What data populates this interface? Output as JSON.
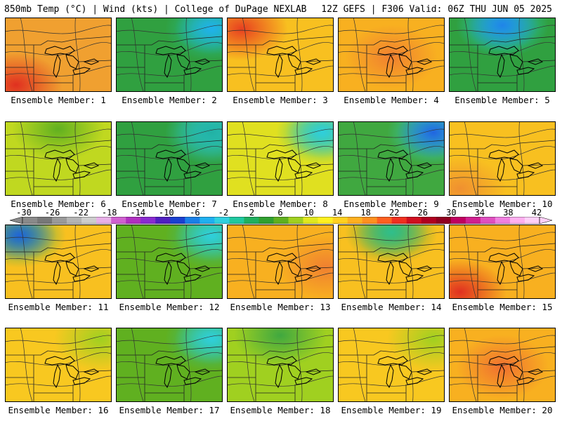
{
  "header": {
    "title_left": "850mb Temp (°C) | Wind (kts) | College of DuPage NEXLAB",
    "title_right": "12Z GEFS | F306 Valid: 06Z THU JUN 05 2025"
  },
  "colorbar": {
    "ticks": [
      "-30",
      "-26",
      "-22",
      "-18",
      "-14",
      "-10",
      "-6",
      "-2",
      "2",
      "6",
      "10",
      "14",
      "18",
      "22",
      "26",
      "30",
      "34",
      "38",
      "42"
    ],
    "colors": [
      "#8a8a8a",
      "#787878",
      "#9a9a9a",
      "#b4b4b4",
      "#cdcdcd",
      "#e8b0e8",
      "#d060d0",
      "#b030c0",
      "#8a2bd0",
      "#5020c0",
      "#1a40d0",
      "#1a80e8",
      "#20b0f0",
      "#30d0e0",
      "#20c8a0",
      "#20b060",
      "#30a030",
      "#60b020",
      "#a0d020",
      "#e0e820",
      "#fff020",
      "#ffd020",
      "#ffb020",
      "#ff9020",
      "#ff6020",
      "#f03020",
      "#d01020",
      "#b00020",
      "#900020",
      "#c00060",
      "#d02090",
      "#e050c0",
      "#f080e0",
      "#ffb0f0",
      "#ffd0f8"
    ]
  },
  "panels": [
    {
      "label": "Ensemble Member: 1",
      "base": "#f0a030",
      "accent": "#e03020",
      "accent_pos": "sw",
      "cool": ""
    },
    {
      "label": "Ensemble Member: 2",
      "base": "#30a040",
      "accent": "#20c0a0",
      "accent_pos": "ne",
      "cool": "#20b0f0"
    },
    {
      "label": "Ensemble Member: 3",
      "base": "#f8c020",
      "accent": "#e84020",
      "accent_pos": "nw",
      "cool": ""
    },
    {
      "label": "Ensemble Member: 4",
      "base": "#f8b020",
      "accent": "#f08030",
      "accent_pos": "c",
      "cool": ""
    },
    {
      "label": "Ensemble Member: 5",
      "base": "#30a040",
      "accent": "#20d0e0",
      "accent_pos": "n",
      "cool": "#2080e8"
    },
    {
      "label": "Ensemble Member: 6",
      "base": "#c0d820",
      "accent": "#60b020",
      "accent_pos": "n",
      "cool": ""
    },
    {
      "label": "Ensemble Member: 7",
      "base": "#30a040",
      "accent": "#30d0e0",
      "accent_pos": "ne",
      "cool": "#20b0a0"
    },
    {
      "label": "Ensemble Member: 8",
      "base": "#e0e020",
      "accent": "#30c090",
      "accent_pos": "ne",
      "cool": "#30d0e0"
    },
    {
      "label": "Ensemble Member: 9",
      "base": "#40a840",
      "accent": "#30d0e0",
      "accent_pos": "ne",
      "cool": "#2060e0"
    },
    {
      "label": "Ensemble Member: 10",
      "base": "#f8c020",
      "accent": "#f09030",
      "accent_pos": "sw",
      "cool": ""
    },
    {
      "label": "Ensemble Member: 11",
      "base": "#f8c020",
      "accent": "#30b060",
      "accent_pos": "nw",
      "cool": "#2060e0"
    },
    {
      "label": "Ensemble Member: 12",
      "base": "#60b020",
      "accent": "#30c090",
      "accent_pos": "ne",
      "cool": "#30d0e0"
    },
    {
      "label": "Ensemble Member: 13",
      "base": "#f8b020",
      "accent": "#f08030",
      "accent_pos": "e",
      "cool": ""
    },
    {
      "label": "Ensemble Member: 14",
      "base": "#f8c020",
      "accent": "#40a840",
      "accent_pos": "n",
      "cool": "#30c090"
    },
    {
      "label": "Ensemble Member: 15",
      "base": "#f8b020",
      "accent": "#e03020",
      "accent_pos": "sw",
      "cool": ""
    },
    {
      "label": "Ensemble Member: 16",
      "base": "#f8c820",
      "accent": "#a0d020",
      "accent_pos": "ne",
      "cool": ""
    },
    {
      "label": "Ensemble Member: 17",
      "base": "#60b020",
      "accent": "#30c090",
      "accent_pos": "ne",
      "cool": "#30d0e0"
    },
    {
      "label": "Ensemble Member: 18",
      "base": "#a0d020",
      "accent": "#40a840",
      "accent_pos": "n",
      "cool": ""
    },
    {
      "label": "Ensemble Member: 19",
      "base": "#f8c820",
      "accent": "#a0d020",
      "accent_pos": "ne",
      "cool": ""
    },
    {
      "label": "Ensemble Member: 20",
      "base": "#f8b020",
      "accent": "#f07030",
      "accent_pos": "c",
      "cool": ""
    }
  ]
}
